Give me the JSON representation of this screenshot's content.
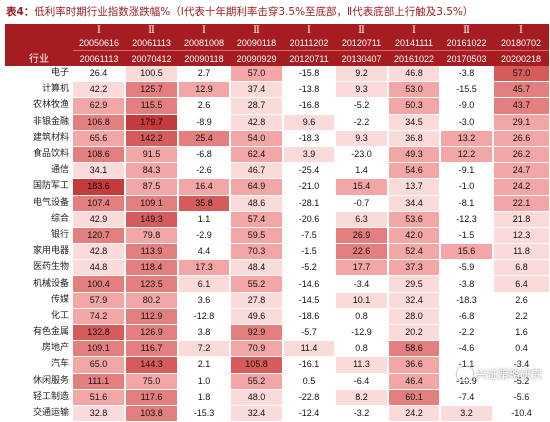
{
  "title": {
    "lead": "表4：",
    "text": "低利率时期行业指数涨跌幅%（Ⅰ代表十年期利率击穿3.5%至底部，Ⅱ代表底部上行触及3.5%）"
  },
  "header": {
    "industry_label": "行业",
    "phases": [
      "Ⅰ",
      "Ⅱ",
      "Ⅰ",
      "Ⅱ",
      "Ⅰ",
      "Ⅱ",
      "Ⅰ",
      "Ⅱ",
      "Ⅰ"
    ],
    "start_dates": [
      "20050616",
      "20061113",
      "20081008",
      "20090118",
      "20111202",
      "20120711",
      "20141111",
      "20161022",
      "20180702"
    ],
    "end_dates": [
      "20061113",
      "20070412",
      "20090118",
      "20090929",
      "20120711",
      "20130407",
      "20161022",
      "20170503",
      "20200218"
    ]
  },
  "rows": [
    {
      "industry": "电子",
      "values": [
        "26.4",
        "100.5",
        "2.7",
        "57.0",
        "-15.8",
        "9.2",
        "46.8",
        "-3.8",
        "57.0"
      ]
    },
    {
      "industry": "计算机",
      "values": [
        "42.2",
        "125.7",
        "12.9",
        "37.4",
        "-13.8",
        "9.3",
        "53.0",
        "-15.5",
        "45.7"
      ]
    },
    {
      "industry": "农林牧渔",
      "values": [
        "62.9",
        "115.5",
        "2.6",
        "28.7",
        "-16.8",
        "-5.2",
        "50.3",
        "-9.0",
        "43.7"
      ]
    },
    {
      "industry": "非银金融",
      "values": [
        "106.8",
        "179.7",
        "-8.9",
        "42.8",
        "9.6",
        "-2.2",
        "34.5",
        "-3.0",
        "29.1"
      ]
    },
    {
      "industry": "建筑材料",
      "values": [
        "65.6",
        "142.2",
        "25.4",
        "54.0",
        "-18.3",
        "9.3",
        "36.8",
        "13.2",
        "26.6"
      ]
    },
    {
      "industry": "食品饮料",
      "values": [
        "108.6",
        "91.5",
        "-6.8",
        "62.4",
        "3.9",
        "-23.0",
        "49.3",
        "12.2",
        "26.2"
      ]
    },
    {
      "industry": "通信",
      "values": [
        "34.1",
        "84.3",
        "-2.6",
        "46.7",
        "-25.4",
        "1.4",
        "54.6",
        "-9.1",
        "24.7"
      ]
    },
    {
      "industry": "国防军工",
      "values": [
        "183.6",
        "87.5",
        "16.4",
        "64.9",
        "-21.0",
        "15.4",
        "13.7",
        "-1.0",
        "24.2"
      ]
    },
    {
      "industry": "电气设备",
      "values": [
        "107.4",
        "109.1",
        "35.8",
        "48.6",
        "-28.1",
        "-0.7",
        "34.4",
        "-8.1",
        "22.1"
      ]
    },
    {
      "industry": "综合",
      "values": [
        "42.9",
        "149.3",
        "1.1",
        "57.4",
        "-20.6",
        "6.3",
        "53.6",
        "-12.3",
        "21.8"
      ]
    },
    {
      "industry": "银行",
      "values": [
        "120.7",
        "79.8",
        "-2.9",
        "59.5",
        "-7.5",
        "26.9",
        "42.0",
        "-1.5",
        "12.3"
      ]
    },
    {
      "industry": "家用电器",
      "values": [
        "42.8",
        "113.9",
        "4.4",
        "70.3",
        "-1.5",
        "22.6",
        "52.4",
        "15.6",
        "11.8"
      ]
    },
    {
      "industry": "医药生物",
      "values": [
        "44.8",
        "118.4",
        "17.3",
        "48.4",
        "-5.2",
        "17.7",
        "37.3",
        "-5.9",
        "6.8"
      ]
    },
    {
      "industry": "机械设备",
      "values": [
        "100.4",
        "123.5",
        "6.1",
        "55.2",
        "-14.6",
        "-3.4",
        "29.5",
        "-3.8",
        "6.4"
      ]
    },
    {
      "industry": "传媒",
      "values": [
        "57.9",
        "80.2",
        "3.6",
        "27.8",
        "-14.5",
        "10.1",
        "32.4",
        "-18.3",
        "2.6"
      ]
    },
    {
      "industry": "化工",
      "values": [
        "74.2",
        "112.9",
        "-12.8",
        "49.6",
        "-18.6",
        "0.8",
        "28.0",
        "-6.8",
        "2.2"
      ]
    },
    {
      "industry": "有色金属",
      "values": [
        "132.8",
        "126.9",
        "3.8",
        "92.9",
        "-5.7",
        "-12.9",
        "20.2",
        "-2.2",
        "1.6"
      ]
    },
    {
      "industry": "房地产",
      "values": [
        "109.1",
        "116.7",
        "7.2",
        "70.9",
        "11.4",
        "0.8",
        "58.6",
        "-4.6",
        "0.4"
      ]
    },
    {
      "industry": "汽车",
      "values": [
        "65.0",
        "144.3",
        "2.1",
        "105.8",
        "-16.1",
        "11.3",
        "36.6",
        "-1.1",
        "-3.4"
      ]
    },
    {
      "industry": "休闲服务",
      "values": [
        "111.1",
        "75.0",
        "1.0",
        "55.2",
        "0.5",
        "-6.4",
        "46.4",
        "-10.9",
        "-5.2"
      ]
    },
    {
      "industry": "轻工制造",
      "values": [
        "51.6",
        "117.6",
        "1.8",
        "48.0",
        "-22.8",
        "8.2",
        "60.1",
        "-7.4",
        "-5.6"
      ]
    },
    {
      "industry": "交通运输",
      "values": [
        "32.8",
        "103.8",
        "-15.3",
        "32.4",
        "-12.4",
        "-3.2",
        "24.2",
        "3.2",
        "-10.4"
      ]
    }
  ],
  "levels": [
    [
      0,
      1,
      0,
      2,
      0,
      1,
      1,
      0,
      4
    ],
    [
      1,
      3,
      2,
      1,
      0,
      1,
      2,
      0,
      3
    ],
    [
      2,
      3,
      0,
      1,
      0,
      0,
      2,
      0,
      3
    ],
    [
      3,
      5,
      0,
      1,
      1,
      0,
      1,
      0,
      2
    ],
    [
      2,
      4,
      3,
      2,
      0,
      1,
      1,
      2,
      2
    ],
    [
      3,
      2,
      0,
      2,
      1,
      0,
      2,
      2,
      2
    ],
    [
      1,
      2,
      0,
      1,
      0,
      0,
      2,
      0,
      2
    ],
    [
      5,
      2,
      2,
      2,
      0,
      2,
      1,
      0,
      2
    ],
    [
      3,
      3,
      4,
      1,
      0,
      0,
      1,
      0,
      2
    ],
    [
      1,
      4,
      0,
      2,
      0,
      1,
      2,
      0,
      1
    ],
    [
      3,
      2,
      0,
      2,
      0,
      3,
      2,
      0,
      1
    ],
    [
      1,
      3,
      0,
      2,
      0,
      3,
      2,
      2,
      1
    ],
    [
      1,
      3,
      2,
      1,
      0,
      2,
      2,
      0,
      1
    ],
    [
      3,
      3,
      1,
      2,
      0,
      0,
      1,
      0,
      1
    ],
    [
      2,
      2,
      0,
      1,
      0,
      1,
      1,
      0,
      0
    ],
    [
      2,
      3,
      0,
      1,
      0,
      0,
      1,
      0,
      0
    ],
    [
      4,
      3,
      0,
      3,
      0,
      0,
      1,
      0,
      0
    ],
    [
      3,
      3,
      1,
      2,
      1,
      0,
      3,
      0,
      0
    ],
    [
      2,
      4,
      0,
      4,
      0,
      1,
      2,
      0,
      0
    ],
    [
      3,
      2,
      0,
      2,
      0,
      0,
      2,
      0,
      0
    ],
    [
      2,
      3,
      0,
      1,
      0,
      1,
      3,
      0,
      0
    ],
    [
      1,
      3,
      0,
      1,
      0,
      0,
      1,
      1,
      0
    ]
  ],
  "watermark": "兴证策略研究"
}
